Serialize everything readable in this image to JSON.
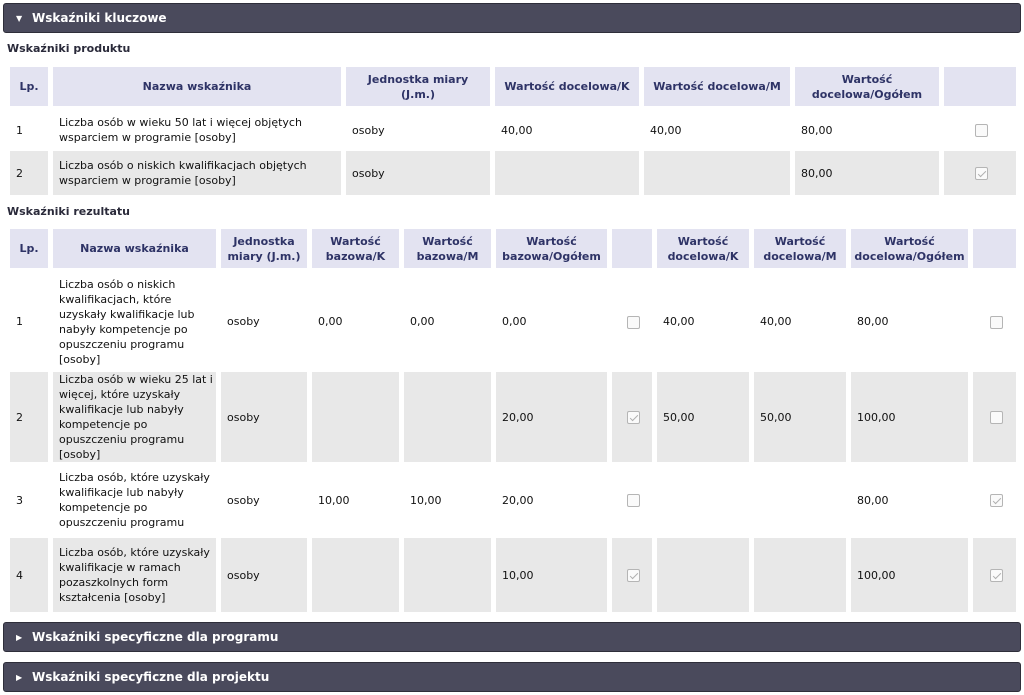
{
  "sections": {
    "key": "Wskaźniki kluczowe",
    "program": "Wskaźniki specyficzne dla programu",
    "project": "Wskaźniki specyficzne dla projektu"
  },
  "product": {
    "title": "Wskaźniki produktu",
    "headers": {
      "lp": "Lp.",
      "name": "Nazwa wskaźnika",
      "unit": "Jednostka miary (J.m.)",
      "target_k": "Wartość docelowa/K",
      "target_m": "Wartość docelowa/M",
      "target_total": "Wartość docelowa/Ogółem"
    },
    "rows": [
      {
        "lp": "1",
        "name": "Liczba osób w wieku 50 lat i więcej objętych wsparciem w programie [osoby]",
        "unit": "osoby",
        "target_k": "40,00",
        "target_m": "40,00",
        "target_total": "80,00",
        "checked": false
      },
      {
        "lp": "2",
        "name": "Liczba osób o niskich kwalifikacjach objętych wsparciem w programie [osoby]",
        "unit": "osoby",
        "target_k": "",
        "target_m": "",
        "target_total": "80,00",
        "checked": true
      }
    ]
  },
  "result": {
    "title": "Wskaźniki rezultatu",
    "headers": {
      "lp": "Lp.",
      "name": "Nazwa wskaźnika",
      "unit": "Jednostka miary (J.m.)",
      "base_k": "Wartość bazowa/K",
      "base_m": "Wartość bazowa/M",
      "base_total": "Wartość bazowa/Ogółem",
      "target_k": "Wartość docelowa/K",
      "target_m": "Wartość docelowa/M",
      "target_total": "Wartość docelowa/Ogółem"
    },
    "rows": [
      {
        "lp": "1",
        "name": "Liczba osób o niskich kwalifikacjach, które uzyskały kwalifikacje lub nabyły kompetencje po opuszczeniu programu [osoby]",
        "unit": "osoby",
        "base_k": "0,00",
        "base_m": "0,00",
        "base_total": "0,00",
        "base_checked": false,
        "target_k": "40,00",
        "target_m": "40,00",
        "target_total": "80,00",
        "target_checked": false
      },
      {
        "lp": "2",
        "name": "Liczba osób w wieku 25 lat i więcej, które uzyskały kwalifikacje lub nabyły kompetencje po opuszczeniu programu [osoby]",
        "unit": "osoby",
        "base_k": "",
        "base_m": "",
        "base_total": "20,00",
        "base_checked": true,
        "target_k": "50,00",
        "target_m": "50,00",
        "target_total": "100,00",
        "target_checked": false
      },
      {
        "lp": "3",
        "name": "Liczba osób, które uzyskały kwalifikacje lub nabyły kompetencje po opuszczeniu programu",
        "unit": "osoby",
        "base_k": "10,00",
        "base_m": "10,00",
        "base_total": "20,00",
        "base_checked": false,
        "target_k": "",
        "target_m": "",
        "target_total": "80,00",
        "target_checked": true
      },
      {
        "lp": "4",
        "name": "Liczba osób, które uzyskały kwalifikacje w ramach pozaszkolnych form kształcenia [osoby]",
        "unit": "osoby",
        "base_k": "",
        "base_m": "",
        "base_total": "10,00",
        "base_checked": true,
        "target_k": "",
        "target_m": "",
        "target_total": "100,00",
        "target_checked": true
      }
    ]
  }
}
